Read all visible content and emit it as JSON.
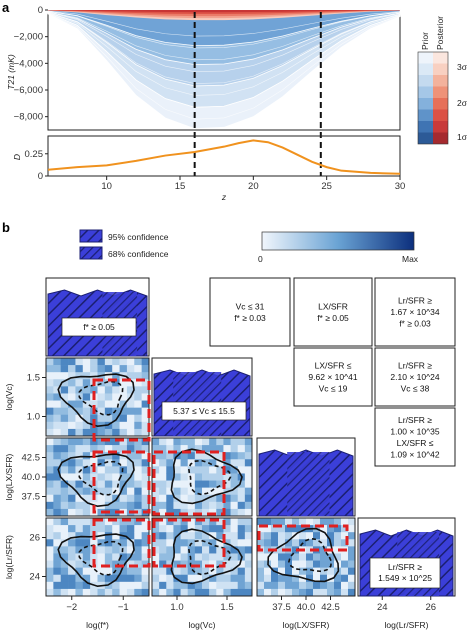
{
  "panel_a": {
    "label": "a",
    "ylabel": "T21 (mK)",
    "ylabel2": "D",
    "xlabel": "z",
    "colorbar": {
      "prior_label": "Prior",
      "posterior_label": "Posterior",
      "levels": [
        "3σ",
        "2σ",
        "1σ"
      ]
    }
  },
  "panel_b": {
    "label": "b",
    "legend": [
      "95% confidence",
      "68% confidence"
    ],
    "colorbar": {
      "min_label": "0",
      "max_label": "Max"
    },
    "diag_annotations": [
      "f* ≥ 0.05",
      "5.37 ≤ Vc ≤ 15.5",
      "Lr/SFR ≥ 1.549 × 10^25"
    ],
    "boxes": [
      {
        "lines": [
          "Vc ≤ 31",
          "f* ≥ 0.03"
        ]
      },
      {
        "lines": [
          "LX/SFR",
          "f* ≥ 0.05"
        ]
      },
      {
        "lines": [
          "Lr/SFR ≥",
          "1.67 × 10^34",
          "f* ≥ 0.03"
        ]
      },
      {
        "lines": [
          "LX/SFR ≤",
          "9.62 × 10^41",
          "Vc ≤ 19"
        ]
      },
      {
        "lines": [
          "Lr/SFR ≥",
          "2.10 × 10^24",
          "Vc ≤ 38"
        ]
      },
      {
        "lines": [
          "Lr/SFR ≥",
          "1.00 × 10^35",
          "LX/SFR ≤",
          "1.09 × 10^42"
        ]
      }
    ],
    "ylabels": [
      "log(Vc)",
      "log(LX/SFR)",
      "log(Lr/SFR)"
    ],
    "xlabels": [
      "log(f*)",
      "log(Vc)",
      "log(LX/SFR)",
      "log(Lr/SFR)"
    ]
  },
  "chart_data": [
    {
      "type": "area",
      "title": "",
      "xlabel": "z",
      "ylabel": "T21 (mK)",
      "xlim": [
        6,
        30
      ],
      "ylim": [
        -9000,
        0
      ],
      "x_ticks": [
        10,
        15,
        20,
        25,
        30
      ],
      "y_ticks": [
        0,
        -2000,
        -4000,
        -6000,
        -8000
      ],
      "y_tick_labels": [
        "0",
        "−2,000",
        "−4,000",
        "−6,000",
        "−8,000"
      ],
      "vertical_lines": [
        16,
        24.6
      ],
      "prior_band_3sigma_min": {
        "x": [
          6,
          8,
          10,
          12,
          14,
          16,
          18,
          20,
          22,
          24,
          26,
          28,
          30
        ],
        "y": [
          -300,
          -1400,
          -3800,
          -6400,
          -8100,
          -8900,
          -8800,
          -8000,
          -6500,
          -4600,
          -2800,
          -1400,
          -500
        ]
      },
      "posterior_band_min": {
        "x": [
          6,
          8,
          10,
          12,
          14,
          16,
          18,
          20,
          22,
          24,
          26,
          28,
          30
        ],
        "y": [
          -40,
          -180,
          -380,
          -560,
          -700,
          -760,
          -760,
          -700,
          -580,
          -420,
          -260,
          -120,
          -40
        ]
      },
      "lower_panel": {
        "ylabel": "D",
        "ylim": [
          0,
          0.45
        ],
        "y_ticks": [
          0,
          0.25
        ],
        "y_tick_labels": [
          "0",
          "0.25"
        ],
        "x": [
          6,
          8,
          10,
          12,
          14,
          16,
          18,
          19,
          20,
          21,
          22,
          23,
          24,
          25,
          26,
          28,
          30
        ],
        "y": [
          0.07,
          0.1,
          0.12,
          0.17,
          0.23,
          0.27,
          0.33,
          0.37,
          0.4,
          0.38,
          0.32,
          0.24,
          0.16,
          0.1,
          0.06,
          0.035,
          0.025
        ]
      }
    },
    {
      "type": "heatmap",
      "title": "",
      "corner_ticks": {
        "log(f*)": [
          "−2",
          "−1"
        ],
        "log(Vc)": [
          "1.0",
          "1.5"
        ],
        "log(LX/SFR)": [
          "37.5",
          "40.0",
          "42.5"
        ],
        "log(Lr/SFR)": [
          "24",
          "26"
        ]
      },
      "colorbar_range": [
        "0",
        "Max"
      ]
    }
  ]
}
